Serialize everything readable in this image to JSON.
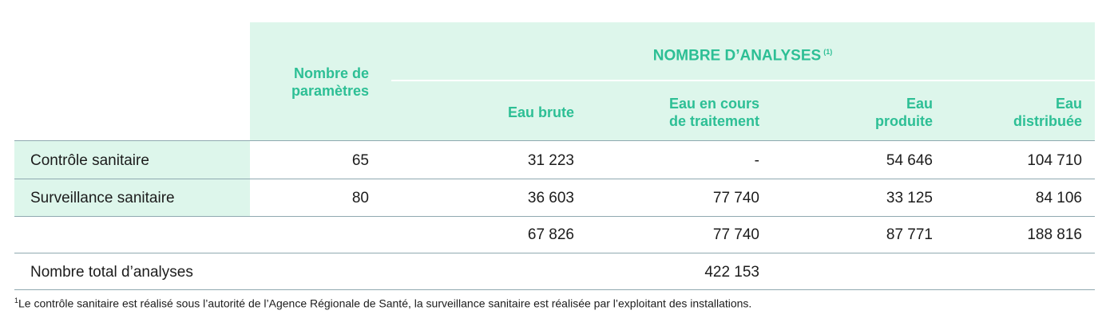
{
  "header": {
    "group_title": "NOMBRE D’ANALYSES",
    "group_note": "(1)",
    "nombre_params": [
      "Nombre de",
      "paramètres"
    ],
    "eau_brute": [
      "Eau brute"
    ],
    "eau_cours": [
      "Eau en cours",
      "de traitement"
    ],
    "eau_produite": [
      "Eau",
      "produite"
    ],
    "eau_distribuee": [
      "Eau",
      "distribuée"
    ]
  },
  "rows": [
    {
      "label": "Contrôle sanitaire",
      "params": "65",
      "brute": "31 223",
      "cours": "-",
      "produite": "54 646",
      "distribuee": "104 710"
    },
    {
      "label": "Surveillance sanitaire",
      "params": "80",
      "brute": "36 603",
      "cours": "77 740",
      "produite": "33 125",
      "distribuee": "84 106"
    },
    {
      "label": "",
      "params": "",
      "brute": "67 826",
      "cours": "77 740",
      "produite": "87 771",
      "distribuee": "188 816"
    }
  ],
  "total": {
    "label": "Nombre total d’analyses",
    "value": "422 153"
  },
  "footnote": {
    "marker": "1",
    "text": "Le contrôle sanitaire est réalisé sous l’autorité de l’Agence Régionale de Santé, la surveillance sanitaire est réalisée par l’exploitant des installations."
  },
  "colors": {
    "header_bg": "#ddf6eb",
    "header_text": "#2dbf95",
    "rule": "#8fa9b0"
  }
}
